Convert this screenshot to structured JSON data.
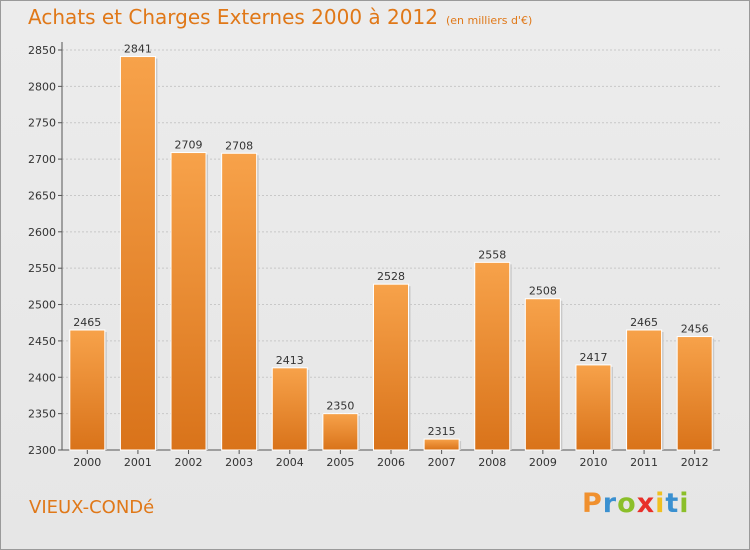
{
  "chart_data": {
    "type": "bar",
    "title": "Achats et Charges Externes 2000 à 2012",
    "subtitle": "(en milliers d'€)",
    "categories": [
      "2000",
      "2001",
      "2002",
      "2003",
      "2004",
      "2005",
      "2006",
      "2007",
      "2008",
      "2009",
      "2010",
      "2011",
      "2012"
    ],
    "values": [
      2465,
      2841,
      2709,
      2708,
      2413,
      2350,
      2528,
      2315,
      2558,
      2508,
      2417,
      2465,
      2456
    ],
    "ylim": [
      2300,
      2850
    ],
    "yticks": [
      2300,
      2350,
      2400,
      2450,
      2500,
      2550,
      2600,
      2650,
      2700,
      2750,
      2800,
      2850
    ],
    "grid": true,
    "bar_color": "#f0902e"
  },
  "commune": "VIEUX-CONDé",
  "logo": {
    "letters": [
      "P",
      "r",
      "o",
      "x",
      "i",
      "t",
      "i"
    ],
    "colors": [
      "#f0902e",
      "#3a90d0",
      "#8bbf2a",
      "#e8302a",
      "#f0c020",
      "#3a90d0",
      "#8bbf2a"
    ]
  }
}
